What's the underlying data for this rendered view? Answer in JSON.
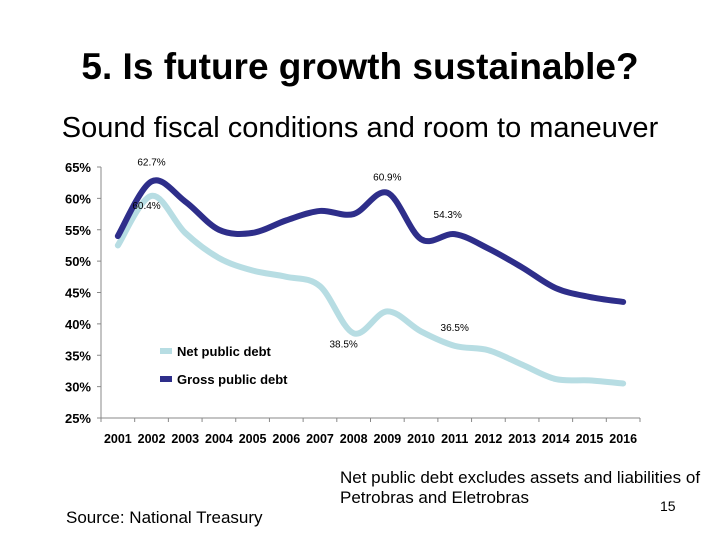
{
  "slide": {
    "title": "5. Is future growth sustainable?",
    "subtitle": "Sound fiscal conditions and room to maneuver",
    "source": "Source: National Treasury",
    "note": "Net public debt excludes assets and liabilities of Petrobras and Eletrobras",
    "page_number": "15"
  },
  "chart_data": {
    "type": "line",
    "categories": [
      "2001",
      "2002",
      "2003",
      "2004",
      "2005",
      "2006",
      "2007",
      "2008",
      "2009",
      "2010",
      "2011",
      "2012",
      "2013",
      "2014",
      "2015",
      "2016"
    ],
    "ylim": [
      25,
      65
    ],
    "yticks": [
      "25%",
      "30%",
      "35%",
      "40%",
      "45%",
      "50%",
      "55%",
      "60%",
      "65%"
    ],
    "legend": "inside-lower-left",
    "series": [
      {
        "name": "Net public debt",
        "color": "#b7dde3",
        "values": [
          52.5,
          60.4,
          54.5,
          50.5,
          48.5,
          47.5,
          46,
          38.5,
          42,
          38.8,
          36.5,
          35.8,
          33.5,
          31.2,
          31,
          30.5
        ]
      },
      {
        "name": "Gross public debt",
        "color": "#2e2e8a",
        "values": [
          54,
          62.7,
          59.5,
          55,
          54.5,
          56.5,
          58,
          57.5,
          60.9,
          53.5,
          54.3,
          52,
          49,
          45.7,
          44.3,
          43.5
        ]
      }
    ],
    "annotations": [
      {
        "text": "62.7%",
        "series": 1,
        "index": 1
      },
      {
        "text": "60.4%",
        "series": 0,
        "index": 1
      },
      {
        "text": "60.9%",
        "series": 1,
        "index": 8
      },
      {
        "text": "54.3%",
        "series": 1,
        "index": 10
      },
      {
        "text": "38.5%",
        "series": 0,
        "index": 7
      },
      {
        "text": "36.5%",
        "series": 0,
        "index": 10
      }
    ]
  }
}
